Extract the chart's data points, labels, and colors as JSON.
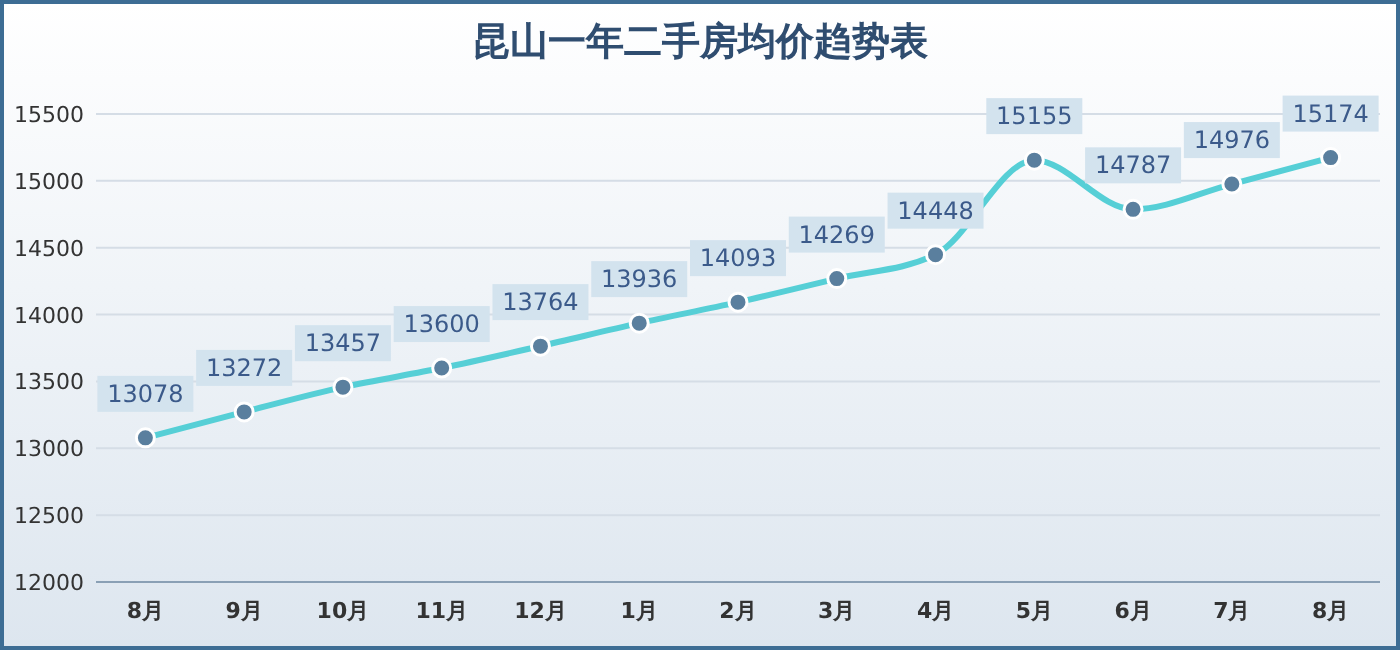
{
  "chart_data": {
    "type": "line",
    "title": "昆山一年二手房均价趋势表",
    "categories": [
      "8月",
      "9月",
      "10月",
      "11月",
      "12月",
      "1月",
      "2月",
      "3月",
      "4月",
      "5月",
      "6月",
      "7月",
      "8月"
    ],
    "series": [
      {
        "color": "#56cfd6",
        "values": [
          13078,
          13272,
          13457,
          13600,
          13764,
          13936,
          14093,
          14269,
          14448,
          15155,
          14787,
          14976,
          15174
        ]
      }
    ],
    "ylim": [
      12000,
      15500
    ],
    "yticks": [
      12000,
      12500,
      13000,
      13500,
      14000,
      14500,
      15000,
      15500
    ],
    "grid": "y",
    "marker": "circle",
    "data_labels": true
  }
}
